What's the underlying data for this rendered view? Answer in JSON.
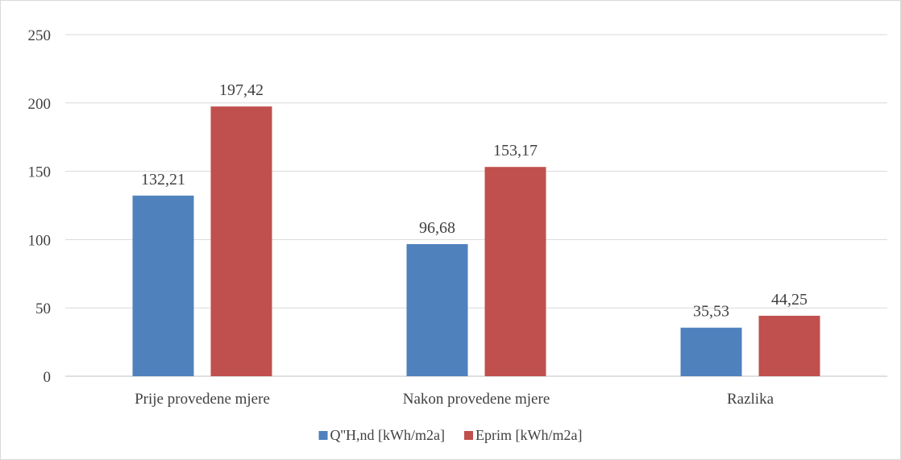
{
  "chart_data": {
    "type": "bar",
    "title": "",
    "xlabel": "",
    "ylabel": "",
    "categories": [
      "Prije provedene mjere",
      "Nakon provedene mjere",
      "Razlika"
    ],
    "series": [
      {
        "name": "Q''H,nd [kWh/m2a]",
        "values": [
          132.21,
          96.68,
          35.53
        ],
        "labels": [
          "132,21",
          "96,68",
          "35,53"
        ],
        "color": "#4f81bd"
      },
      {
        "name": "Eprim [kWh/m2a]",
        "values": [
          197.42,
          153.17,
          44.25
        ],
        "labels": [
          "197,42",
          "153,17",
          "44,25"
        ],
        "color": "#c0504d"
      }
    ],
    "ylim": [
      0,
      250
    ],
    "yticks": [
      0,
      50,
      100,
      150,
      200,
      250
    ],
    "ytick_labels": [
      "0",
      "50",
      "100",
      "150",
      "200",
      "250"
    ],
    "grid": true,
    "legend_position": "bottom"
  }
}
